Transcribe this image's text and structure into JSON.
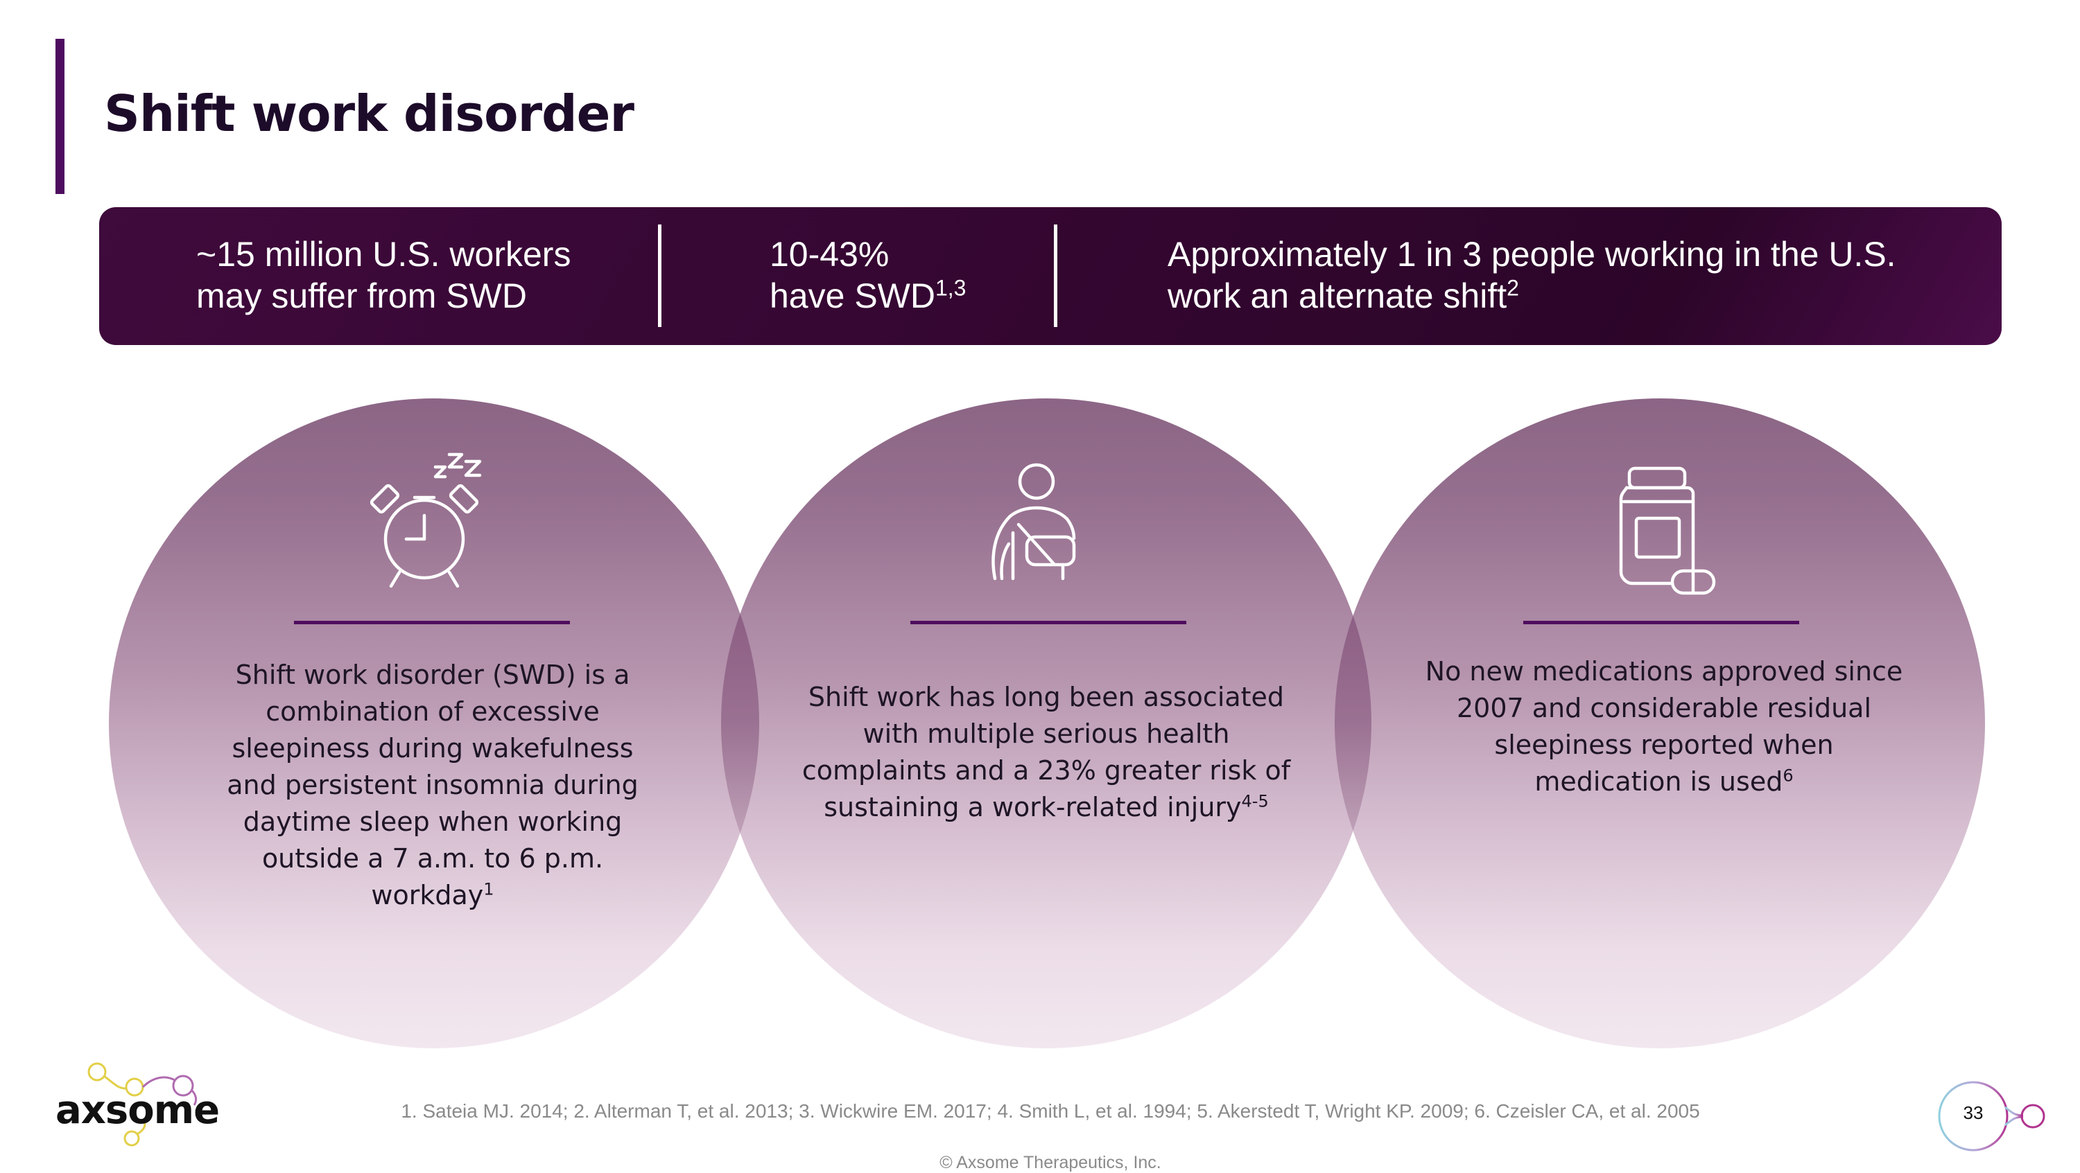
{
  "header": {
    "title": "Shift work disorder"
  },
  "stats": [
    {
      "line1": "~15 million U.S. workers",
      "line2": "may suffer from SWD",
      "sup": ""
    },
    {
      "line1": "10-43%",
      "line2": "have SWD",
      "sup": "1,3"
    },
    {
      "line1": "Approximately 1 in 3 people working in the U.S.",
      "line2": "work an alternate shift",
      "sup": "2"
    }
  ],
  "cards": [
    {
      "icon": "alarm-clock-sleep-icon",
      "lines": [
        "Shift work disorder (SWD) is a",
        "combination of excessive",
        "sleepiness during wakefulness",
        "and persistent insomnia during",
        "daytime sleep when working",
        "outside a 7 a.m. to 6 p.m."
      ],
      "last": "workday",
      "sup": "1"
    },
    {
      "icon": "arm-sling-injury-icon",
      "lines": [
        "Shift work has long been associated",
        "with multiple serious health",
        "complaints and a 23% greater risk of"
      ],
      "last": "sustaining a work-related injury",
      "sup": "4-5"
    },
    {
      "icon": "medication-bottle-icon",
      "lines": [
        "No new medications approved since",
        "2007 and considerable residual",
        "sleepiness reported when"
      ],
      "last": "medication is used",
      "sup": "6"
    }
  ],
  "footer": {
    "logo_text": "axsome",
    "references": "1. Sateia MJ. 2014; 2. Alterman T, et al. 2013; 3. Wickwire EM. 2017; 4. Smith L, et al. 1994; 5. Akerstedt T, Wright KP. 2009; 6. Czeisler CA, et al. 2005",
    "copyright": "© Axsome Therapeutics, Inc.",
    "page_number": "33"
  },
  "colors": {
    "accent": "#4e0d5e",
    "banner": "#33062f",
    "circle_top": "#8c6585",
    "circle_bottom": "#f2e7ef",
    "title": "#1d0b2a"
  }
}
